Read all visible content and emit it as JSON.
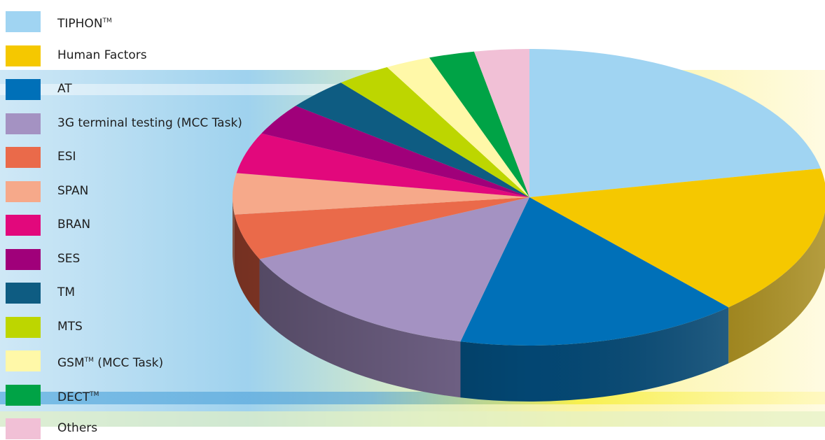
{
  "chart_data": {
    "type": "pie",
    "style": "3d",
    "legend_position": "left",
    "slices": [
      {
        "label": "TIPHON",
        "suffix": "TM",
        "after": "",
        "value": 22.0,
        "color": "#a0d4f2",
        "side": "#7fb3cf"
      },
      {
        "label": "Human Factors",
        "suffix": "",
        "after": "",
        "value": 16.5,
        "color": "#f5c800",
        "side": "#9c7d00"
      },
      {
        "label": "AT",
        "suffix": "",
        "after": "",
        "value": 15.5,
        "color": "#0070b8",
        "side": "#034a78"
      },
      {
        "label": "3G terminal testing (MCC Task)",
        "suffix": "",
        "after": "",
        "value": 14.5,
        "color": "#a492c2",
        "side": "#7c6c94"
      },
      {
        "label": "ESI",
        "suffix": "",
        "after": "",
        "value": 5.0,
        "color": "#ea6a4a",
        "side": "#b24a33"
      },
      {
        "label": "SPAN",
        "suffix": "",
        "after": "",
        "value": 4.5,
        "color": "#f6a98a",
        "side": "#c8816a"
      },
      {
        "label": "BRAN",
        "suffix": "",
        "after": "",
        "value": 4.5,
        "color": "#e2087c",
        "side": "#a5065a"
      },
      {
        "label": "SES",
        "suffix": "",
        "after": "",
        "value": 3.5,
        "color": "#a0007a",
        "side": "#6e0054"
      },
      {
        "label": "TM",
        "suffix": "",
        "after": "",
        "value": 3.5,
        "color": "#0e5c82",
        "side": "#093f5a"
      },
      {
        "label": "MTS",
        "suffix": "",
        "after": "",
        "value": 3.0,
        "color": "#bdd600",
        "side": "#8c9e00"
      },
      {
        "label": "GSM",
        "suffix": "TM",
        "after": " (MCC Task)",
        "value": 2.5,
        "color": "#fff8a8",
        "side": "#d6cf82"
      },
      {
        "label": "DECT",
        "suffix": "TM",
        "after": "",
        "value": 2.5,
        "color": "#00a346",
        "side": "#007432"
      },
      {
        "label": "Others",
        "suffix": "",
        "after": "",
        "value": 3.0,
        "color": "#f1c0d6",
        "side": "#c596ab"
      }
    ]
  }
}
